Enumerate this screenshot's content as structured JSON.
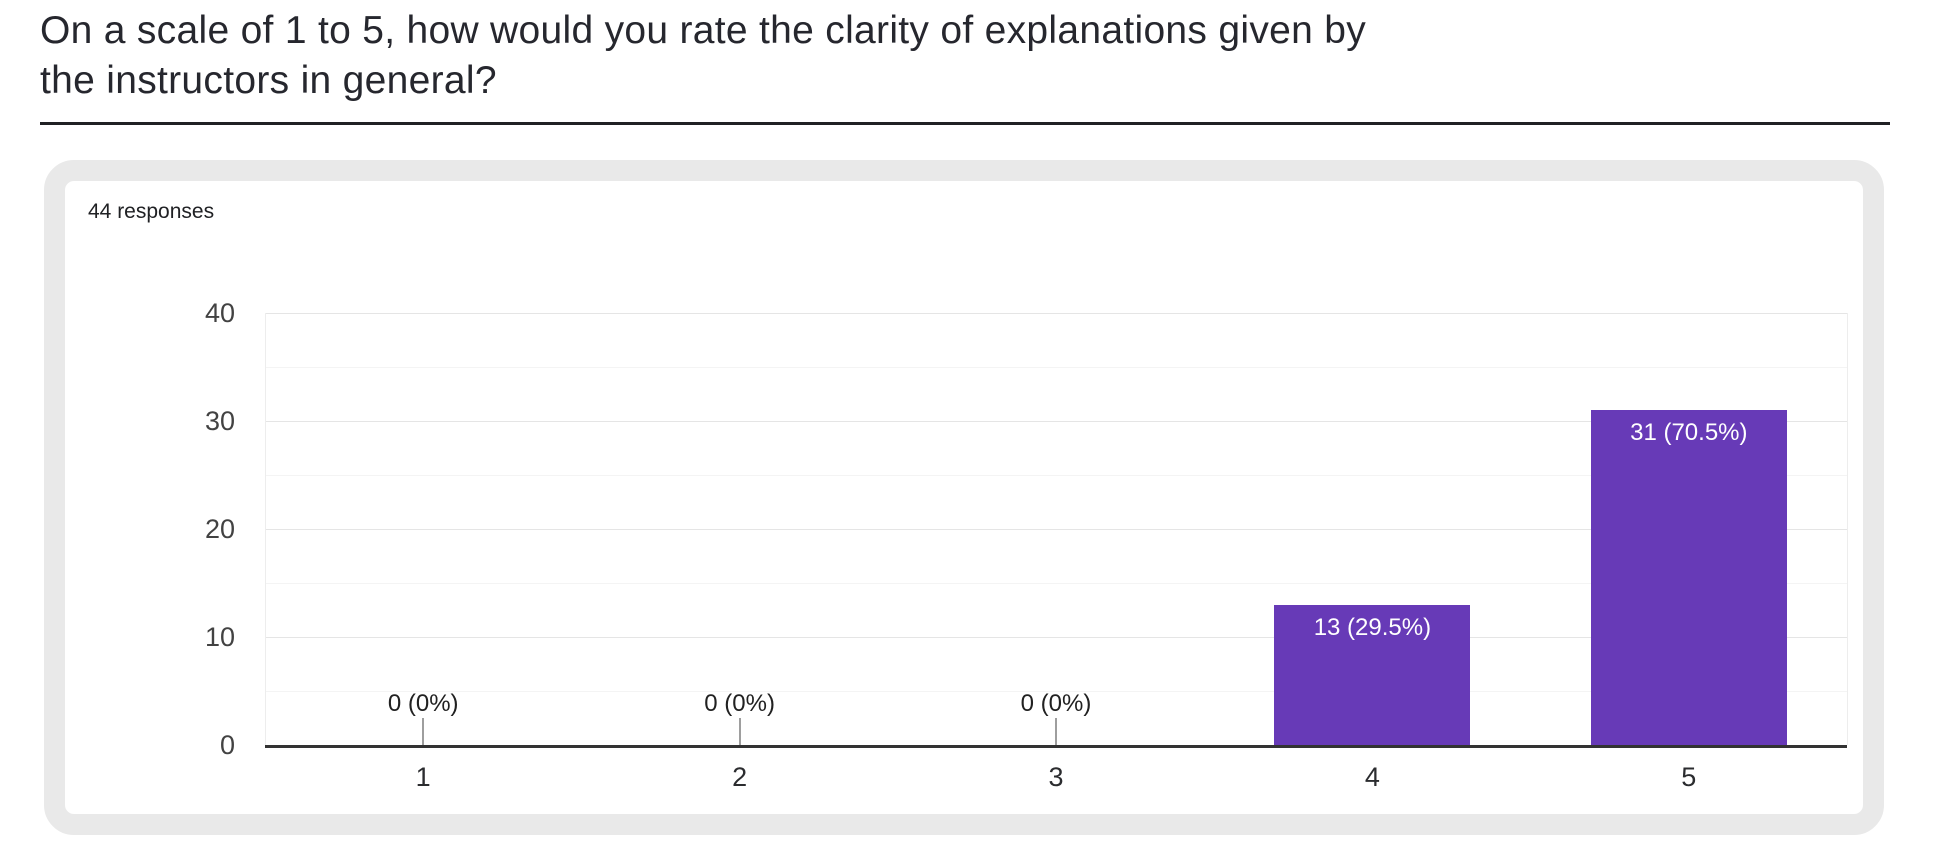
{
  "header": {
    "title_lines": [
      "On a scale of 1 to 5, how would you rate the clarity of explanations given by",
      "the instructors in general?"
    ]
  },
  "card": {
    "responses_label": "44 responses"
  },
  "chart_data": {
    "type": "bar",
    "title": "On a scale of 1 to 5, how would you rate the clarity of explanations given by the instructors in general?",
    "subtitle": "44 responses",
    "categories": [
      "1",
      "2",
      "3",
      "4",
      "5"
    ],
    "values": [
      0,
      0,
      0,
      13,
      31
    ],
    "value_labels": [
      "0 (0%)",
      "0 (0%)",
      "0 (0%)",
      "13 (29.5%)",
      "31 (70.5%)"
    ],
    "xlabel": "",
    "ylabel": "",
    "ylim": [
      0,
      40
    ],
    "yticks": [
      0,
      10,
      20,
      30,
      40
    ],
    "minor_grid_step": 5,
    "grid": true,
    "legend_position": "none"
  },
  "colors": {
    "bar": "#673ab7",
    "bar_label_text": "#ffffff",
    "axis_line": "#333333",
    "gridline_major": "#e5e5e5",
    "gridline_minor": "#f4f4f4",
    "plot_border": "#ededed",
    "y_tick_label": "#424242",
    "x_tick_label": "#2b2c2f",
    "zero_stem": "#9e9e9e",
    "card_border": "#e9e9e9",
    "title_text": "#26272e",
    "underline": "#202124"
  }
}
